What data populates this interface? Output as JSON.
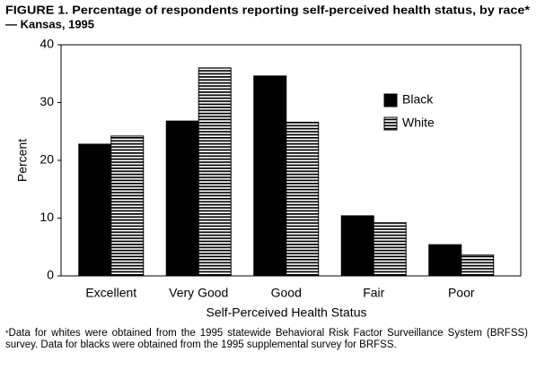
{
  "chart_data": {
    "type": "bar",
    "title": [
      "FIGURE 1. Percentage of respondents reporting self-perceived health status, by race*",
      "— Kansas, 1995"
    ],
    "x_label": "Self-Perceived Health Status",
    "y_label": "Percent",
    "categories": [
      "Excellent",
      "Very Good",
      "Good",
      "Fair",
      "Poor"
    ],
    "series": [
      {
        "name": "Black",
        "color": "#000000",
        "hatch": false,
        "values": [
          22.8,
          26.8,
          34.6,
          10.4,
          5.4
        ]
      },
      {
        "name": "White",
        "color": "#ffffff",
        "hatch": true,
        "values": [
          24.2,
          36.0,
          26.6,
          9.2,
          3.6
        ]
      }
    ],
    "ylim": [
      0,
      40
    ],
    "yticks": [
      0,
      10,
      20,
      30,
      40
    ],
    "grid": false,
    "legend": "upper-right",
    "footnote_marker": "*",
    "footnote": "Data for whites were obtained from the 1995 statewide Behavioral Risk Factor Surveillance System (BRFSS) survey. Data for blacks were obtained from the 1995 supplemental survey for BRFSS."
  }
}
